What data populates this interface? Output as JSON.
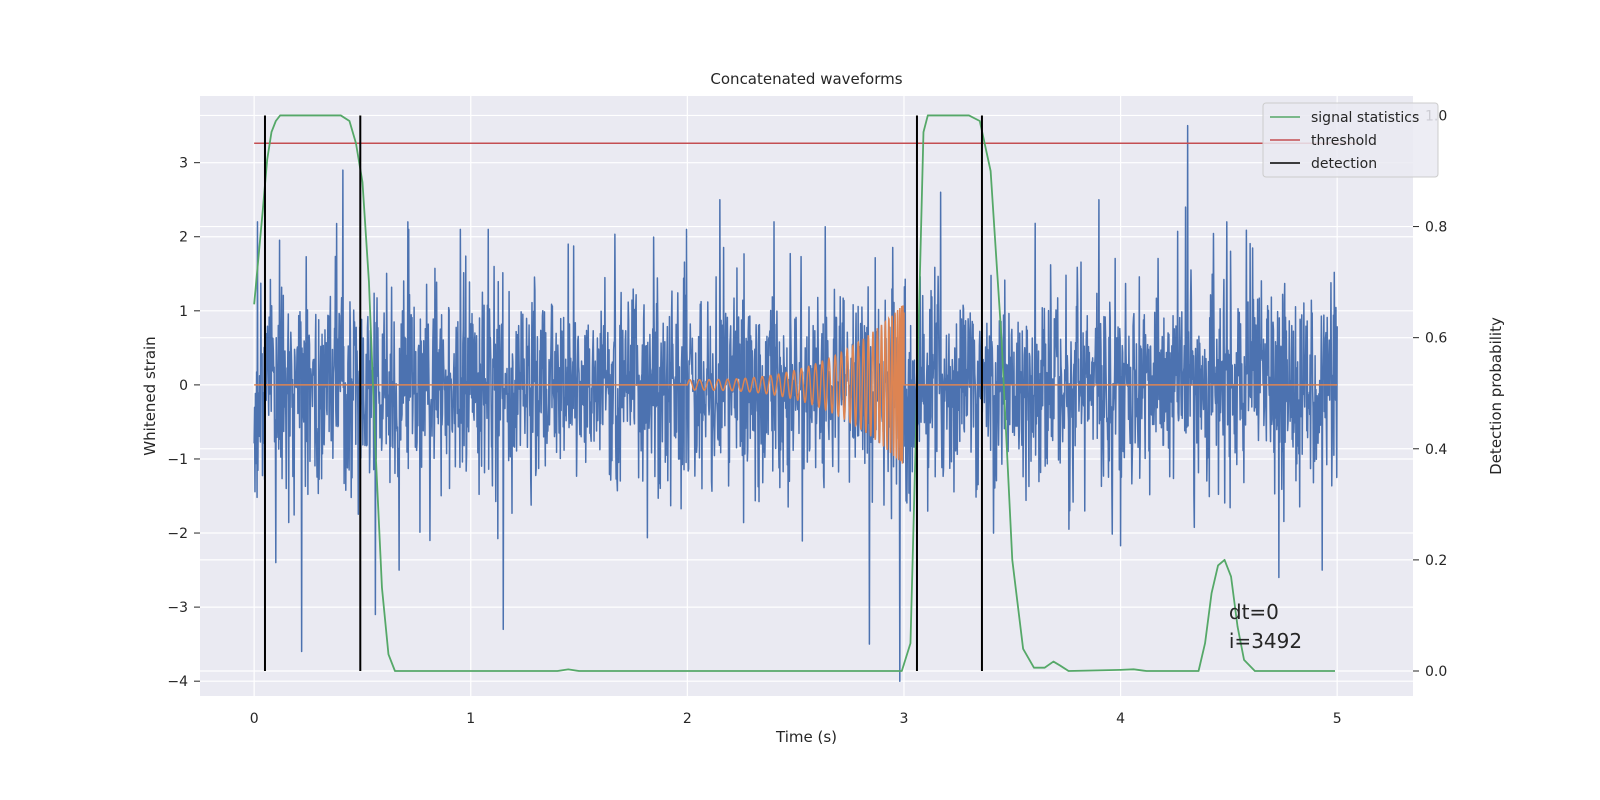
{
  "chart_data": {
    "type": "line",
    "title": "Concatenated waveforms",
    "xlabel": "Time (s)",
    "ylabel_left": "Whitened strain",
    "ylabel_right": "Detection probability",
    "xlim": [
      -0.25,
      5.35
    ],
    "ylim_left": [
      -4.2,
      3.9
    ],
    "ylim_right": [
      -0.045,
      1.035
    ],
    "xticks": [
      0,
      1,
      2,
      3,
      4,
      5
    ],
    "yticks_left": [
      -4,
      -3,
      -2,
      -1,
      0,
      1,
      2,
      3
    ],
    "yticks_right": [
      0.0,
      0.2,
      0.4,
      0.6,
      0.8,
      1.0
    ],
    "grid": true,
    "legend_position": "top-right",
    "colors": {
      "strain": "#4c72b0",
      "injection": "#dd8452",
      "signal_statistics": "#55a868",
      "threshold": "#c44e52",
      "detection": "#000000",
      "background": "#eaeaf2",
      "grid": "#ffffff"
    },
    "series": [
      {
        "name": "",
        "axis": "left",
        "kind": "noise",
        "x_range": [
          0,
          5
        ],
        "envelope": [
          [
            0.0,
            2.2
          ],
          [
            0.1,
            1.9
          ],
          [
            0.2,
            2.2
          ],
          [
            0.3,
            2.3
          ],
          [
            0.5,
            2.0
          ],
          [
            0.6,
            2.1
          ],
          [
            1.0,
            2.1
          ],
          [
            1.5,
            2.0
          ],
          [
            2.0,
            2.1
          ],
          [
            2.5,
            2.1
          ],
          [
            2.9,
            2.2
          ],
          [
            3.0,
            1.5
          ],
          [
            3.1,
            2.2
          ],
          [
            3.5,
            2.2
          ],
          [
            4.0,
            2.3
          ],
          [
            4.5,
            2.2
          ],
          [
            5.0,
            1.5
          ]
        ],
        "spikes": [
          [
            0.015,
            2.2
          ],
          [
            0.22,
            -3.6
          ],
          [
            0.1,
            -2.4
          ],
          [
            0.41,
            2.9
          ],
          [
            0.71,
            2.2
          ],
          [
            0.56,
            -3.1
          ],
          [
            0.67,
            -2.5
          ],
          [
            1.08,
            2.1
          ],
          [
            1.15,
            -3.3
          ],
          [
            1.45,
            1.9
          ],
          [
            2.15,
            2.5
          ],
          [
            2.4,
            2.2
          ],
          [
            2.84,
            -3.5
          ],
          [
            2.98,
            -4.0
          ],
          [
            3.17,
            2.6
          ],
          [
            3.9,
            2.5
          ],
          [
            4.3,
            2.4
          ],
          [
            4.31,
            3.5
          ],
          [
            4.49,
            2.2
          ],
          [
            4.73,
            -2.6
          ],
          [
            4.93,
            -2.5
          ]
        ]
      },
      {
        "name": "",
        "axis": "left",
        "kind": "chirp",
        "x_range": [
          0,
          5
        ],
        "chirp_start": 2.0,
        "chirp_end": 3.0,
        "amplitude_start": 0.07,
        "amplitude_end": 1.1
      },
      {
        "name": "signal statistics",
        "axis": "right",
        "points": [
          [
            0.0,
            0.66
          ],
          [
            0.04,
            0.83
          ],
          [
            0.06,
            0.92
          ],
          [
            0.08,
            0.97
          ],
          [
            0.1,
            0.99
          ],
          [
            0.12,
            1.0
          ],
          [
            0.4,
            1.0
          ],
          [
            0.44,
            0.99
          ],
          [
            0.47,
            0.95
          ],
          [
            0.5,
            0.88
          ],
          [
            0.53,
            0.7
          ],
          [
            0.56,
            0.4
          ],
          [
            0.59,
            0.15
          ],
          [
            0.62,
            0.03
          ],
          [
            0.65,
            0.0
          ],
          [
            1.4,
            0.0
          ],
          [
            1.45,
            0.003
          ],
          [
            1.5,
            0.0
          ],
          [
            2.99,
            0.0
          ],
          [
            3.03,
            0.05
          ],
          [
            3.06,
            0.5
          ],
          [
            3.09,
            0.97
          ],
          [
            3.11,
            1.0
          ],
          [
            3.3,
            1.0
          ],
          [
            3.35,
            0.99
          ],
          [
            3.4,
            0.9
          ],
          [
            3.45,
            0.6
          ],
          [
            3.5,
            0.2
          ],
          [
            3.55,
            0.04
          ],
          [
            3.6,
            0.006
          ],
          [
            3.65,
            0.006
          ],
          [
            3.69,
            0.017
          ],
          [
            3.72,
            0.01
          ],
          [
            3.76,
            0.0
          ],
          [
            4.0,
            0.002
          ],
          [
            4.06,
            0.003
          ],
          [
            4.12,
            0.0
          ],
          [
            4.36,
            0.0
          ],
          [
            4.39,
            0.05
          ],
          [
            4.42,
            0.14
          ],
          [
            4.45,
            0.19
          ],
          [
            4.48,
            0.2
          ],
          [
            4.51,
            0.17
          ],
          [
            4.54,
            0.08
          ],
          [
            4.57,
            0.02
          ],
          [
            4.62,
            0.0
          ],
          [
            4.99,
            0.0
          ]
        ]
      },
      {
        "name": "threshold",
        "axis": "right",
        "kind": "hline",
        "value": 0.95,
        "x_range": [
          0,
          5.1
        ]
      },
      {
        "name": "detection",
        "axis": "right",
        "kind": "vlines",
        "x": [
          0.05,
          0.49,
          3.06,
          3.36
        ],
        "y_range": [
          0,
          1.0
        ]
      }
    ],
    "annotations": [
      "dt=0",
      "i=3492"
    ],
    "annotation_position": [
      4.5,
      0.09
    ]
  }
}
